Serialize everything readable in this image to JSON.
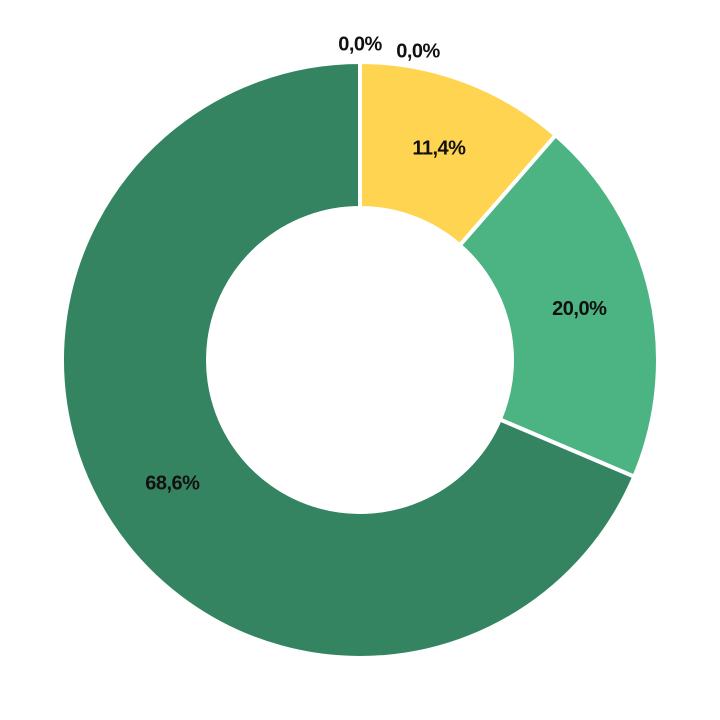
{
  "chart_data": {
    "type": "donut",
    "values": [
      0.0,
      0.0,
      11.4,
      20.0,
      68.6
    ],
    "value_labels": [
      "0,0%",
      "0,0%",
      "11,4%",
      "20,0%",
      "68,6%"
    ],
    "colors": [
      "#e07b39",
      "#2e6da4",
      "#ffd451",
      "#4cb482",
      "#358461"
    ]
  }
}
